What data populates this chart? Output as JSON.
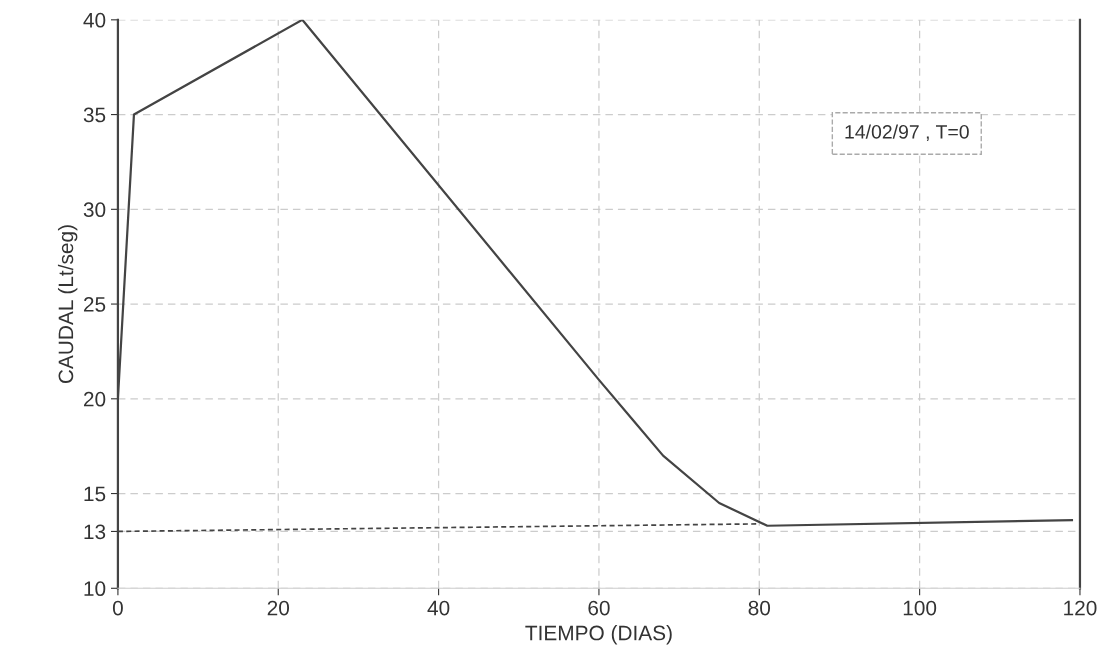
{
  "chart_data": {
    "type": "line",
    "xlabel": "TIEMPO (DIAS)",
    "ylabel": "CAUDAL (Lt/seg)",
    "series": [
      {
        "color": "#444444",
        "line_style": "solid",
        "x": [
          0,
          2,
          23,
          60,
          64,
          68,
          75,
          81,
          119
        ],
        "values": [
          20,
          35,
          40,
          21,
          19,
          17,
          14.5,
          13.3,
          13.6
        ]
      },
      {
        "color": "#444444",
        "line_style": "dashed",
        "x": [
          0,
          80
        ],
        "values": [
          13,
          13.4
        ]
      }
    ],
    "annotations": [
      "14/02/97 , T=0"
    ],
    "xlim": [
      0,
      120
    ],
    "xticks": [
      0,
      20,
      40,
      60,
      80,
      100,
      120
    ],
    "ylim": [
      10,
      40
    ],
    "yticks": [
      10,
      13,
      15,
      20,
      25,
      30,
      35,
      40
    ],
    "grid": true,
    "marker": "none"
  }
}
